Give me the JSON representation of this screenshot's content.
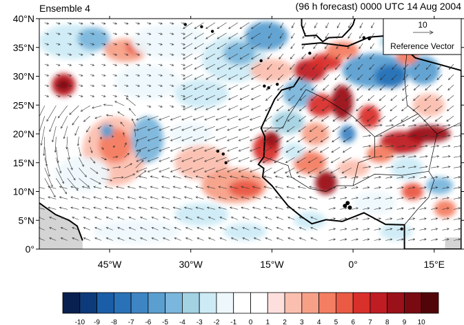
{
  "header": {
    "left_title": "Ensemble 4",
    "right_title": "(96 h forecast) 0000 UTC 14 Aug 2004"
  },
  "map": {
    "lon_range": [
      -58,
      20
    ],
    "lat_range": [
      0,
      40
    ],
    "lat_ticks": [
      {
        "value": 40,
        "label": "40°N"
      },
      {
        "value": 35,
        "label": "35°N"
      },
      {
        "value": 30,
        "label": "30°N"
      },
      {
        "value": 25,
        "label": "25°N"
      },
      {
        "value": 20,
        "label": "20°N"
      },
      {
        "value": 15,
        "label": "15°N"
      },
      {
        "value": 10,
        "label": "10°N"
      },
      {
        "value": 5,
        "label": "5°N"
      },
      {
        "value": 0,
        "label": "0°"
      }
    ],
    "lon_ticks": [
      {
        "value": -45,
        "label": "45°W"
      },
      {
        "value": -30,
        "label": "30°W"
      },
      {
        "value": -15,
        "label": "15°W"
      },
      {
        "value": 0,
        "label": "0°"
      },
      {
        "value": 15,
        "label": "15°E"
      }
    ],
    "colors": {
      "land": "#d4d4d4",
      "coast": "#000000",
      "vector": "#333333"
    },
    "anomalies": [
      {
        "lon": -53.5,
        "lat": 28.5,
        "rx": 2.2,
        "ry": 2,
        "level": 7
      },
      {
        "lon": -53.5,
        "lat": 28.5,
        "rx": 1.2,
        "ry": 1,
        "level": 9
      },
      {
        "lon": -52,
        "lat": 36,
        "rx": 6,
        "ry": 3,
        "level": -2
      },
      {
        "lon": -48,
        "lat": 36.5,
        "rx": 3,
        "ry": 2,
        "level": -4
      },
      {
        "lon": -42,
        "lat": 34.5,
        "rx": 4,
        "ry": 2,
        "level": 3
      },
      {
        "lon": -40,
        "lat": 35,
        "rx": 2,
        "ry": 1.2,
        "level": 5
      },
      {
        "lon": -34,
        "lat": 36,
        "rx": 7,
        "ry": 3,
        "level": -1
      },
      {
        "lon": -22,
        "lat": 33,
        "rx": 6,
        "ry": 4,
        "level": -2
      },
      {
        "lon": -21,
        "lat": 34,
        "rx": 3,
        "ry": 2,
        "level": -4
      },
      {
        "lon": -16,
        "lat": 37,
        "rx": 4,
        "ry": 2.5,
        "level": -5
      },
      {
        "lon": -15,
        "lat": 31,
        "rx": 4,
        "ry": 2,
        "level": 2
      },
      {
        "lon": -28,
        "lat": 27,
        "rx": 5,
        "ry": 2.5,
        "level": -2
      },
      {
        "lon": -38,
        "lat": 29,
        "rx": 6,
        "ry": 3,
        "level": -1
      },
      {
        "lon": -44,
        "lat": 17,
        "rx": 6,
        "ry": 6,
        "level": 2
      },
      {
        "lon": -44,
        "lat": 18,
        "rx": 3,
        "ry": 3,
        "level": 4
      },
      {
        "lon": -45.5,
        "lat": 20.5,
        "rx": 1.2,
        "ry": 1.2,
        "level": -5
      },
      {
        "lon": -38,
        "lat": 19,
        "rx": 3,
        "ry": 4,
        "level": -4
      },
      {
        "lon": -50,
        "lat": 13,
        "rx": 5,
        "ry": 3,
        "level": -1
      },
      {
        "lon": -28,
        "lat": 15,
        "rx": 5,
        "ry": 3,
        "level": 2
      },
      {
        "lon": -30,
        "lat": 20,
        "rx": 4,
        "ry": 2,
        "level": -1
      },
      {
        "lon": -22,
        "lat": 11,
        "rx": 6,
        "ry": 3,
        "level": 3
      },
      {
        "lon": -20,
        "lat": 10.5,
        "rx": 3,
        "ry": 1.5,
        "level": 5
      },
      {
        "lon": -16,
        "lat": 17.5,
        "rx": 2.5,
        "ry": 2.5,
        "level": 6
      },
      {
        "lon": -15,
        "lat": 19,
        "rx": 1.5,
        "ry": 1.5,
        "level": 8
      },
      {
        "lon": -28,
        "lat": 6,
        "rx": 5,
        "ry": 2,
        "level": -2
      },
      {
        "lon": -40,
        "lat": 3,
        "rx": 8,
        "ry": 2,
        "level": -1
      },
      {
        "lon": -20,
        "lat": 3,
        "rx": 4,
        "ry": 1.5,
        "level": -2
      },
      {
        "lon": -8,
        "lat": 31,
        "rx": 3,
        "ry": 2,
        "level": 7
      },
      {
        "lon": -5,
        "lat": 32.5,
        "rx": 3,
        "ry": 1.5,
        "level": 6
      },
      {
        "lon": -2,
        "lat": 34.5,
        "rx": 3,
        "ry": 1.5,
        "level": 4
      },
      {
        "lon": 4,
        "lat": 31,
        "rx": 6,
        "ry": 3,
        "level": -5
      },
      {
        "lon": 7,
        "lat": 30,
        "rx": 3,
        "ry": 2,
        "level": -7
      },
      {
        "lon": 13,
        "lat": 31,
        "rx": 3,
        "ry": 2.5,
        "level": -5
      },
      {
        "lon": 8,
        "lat": 36,
        "rx": 3,
        "ry": 1.5,
        "level": -3
      },
      {
        "lon": 10,
        "lat": 33.5,
        "rx": 2,
        "ry": 1.5,
        "level": 4
      },
      {
        "lon": -10,
        "lat": 27,
        "rx": 3,
        "ry": 2.5,
        "level": -4
      },
      {
        "lon": -6,
        "lat": 25,
        "rx": 2.5,
        "ry": 2,
        "level": 6
      },
      {
        "lon": -2,
        "lat": 25.5,
        "rx": 2,
        "ry": 3,
        "level": 8
      },
      {
        "lon": 3,
        "lat": 23,
        "rx": 2,
        "ry": 2,
        "level": 6
      },
      {
        "lon": -1,
        "lat": 20,
        "rx": 1.5,
        "ry": 1.5,
        "level": -6
      },
      {
        "lon": -12,
        "lat": 22,
        "rx": 3,
        "ry": 2,
        "level": -3
      },
      {
        "lon": -7,
        "lat": 20,
        "rx": 2.5,
        "ry": 2,
        "level": 3
      },
      {
        "lon": 9,
        "lat": 18.5,
        "rx": 4,
        "ry": 2,
        "level": 7
      },
      {
        "lon": 14,
        "lat": 20,
        "rx": 4,
        "ry": 1.5,
        "level": 8
      },
      {
        "lon": 5,
        "lat": 16.5,
        "rx": 2.5,
        "ry": 1.5,
        "level": 4
      },
      {
        "lon": -5,
        "lat": 11.5,
        "rx": 2,
        "ry": 2,
        "level": 8
      },
      {
        "lon": -8,
        "lat": 15,
        "rx": 3,
        "ry": 2,
        "level": 4
      },
      {
        "lon": -11,
        "lat": 17,
        "rx": 2,
        "ry": 1.5,
        "level": -2
      },
      {
        "lon": 0,
        "lat": 14,
        "rx": 3,
        "ry": 1.5,
        "level": 2
      },
      {
        "lon": 10,
        "lat": 14,
        "rx": 3,
        "ry": 2,
        "level": -2
      },
      {
        "lon": 16,
        "lat": 11,
        "rx": 2.5,
        "ry": 1.5,
        "level": -4
      },
      {
        "lon": 11,
        "lat": 10,
        "rx": 2,
        "ry": 1.5,
        "level": 5
      },
      {
        "lon": 17,
        "lat": 7,
        "rx": 2,
        "ry": 1.5,
        "level": 4
      },
      {
        "lon": 4,
        "lat": 8,
        "rx": 4,
        "ry": 2,
        "level": -1
      },
      {
        "lon": -8,
        "lat": 5,
        "rx": 3,
        "ry": 1.5,
        "level": -2
      },
      {
        "lon": 8,
        "lat": 3,
        "rx": 3,
        "ry": 1.5,
        "level": -2
      },
      {
        "lon": 14,
        "lat": 25,
        "rx": 3,
        "ry": 2,
        "level": 2
      }
    ]
  },
  "reference_vector": {
    "magnitude": "10",
    "label": "Reference Vector"
  },
  "colorbar": {
    "labels": [
      "-10",
      "-9",
      "-8",
      "-7",
      "-6",
      "-5",
      "-4",
      "-3",
      "-2",
      "-1",
      "0",
      "1",
      "2",
      "3",
      "4",
      "5",
      "6",
      "7",
      "8",
      "9",
      "10"
    ],
    "colors": [
      "#08204e",
      "#0d3a7a",
      "#1a5ea8",
      "#2a72b8",
      "#3e85c4",
      "#5b9fd1",
      "#7bb6dc",
      "#a3d2e2",
      "#cdebf5",
      "#eef8fc",
      "#ffffff",
      "#ffffff",
      "#fde0dd",
      "#fbbfaf",
      "#f7a088",
      "#f37e62",
      "#ea5a44",
      "#d9302c",
      "#bf1d23",
      "#9b1119",
      "#7a0a12",
      "#520509"
    ]
  }
}
